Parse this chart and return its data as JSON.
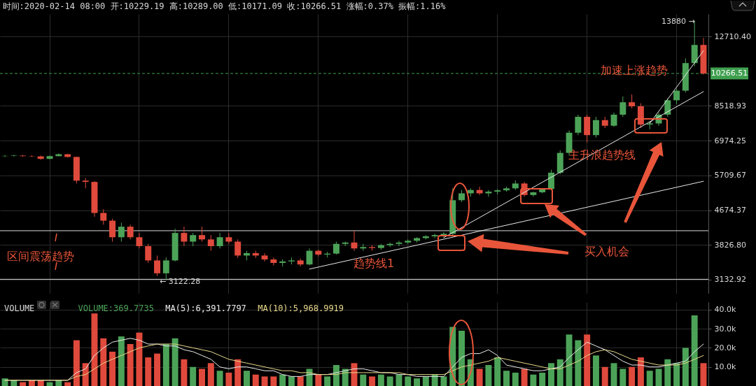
{
  "chart_data": [
    {
      "type": "candlestick",
      "title": "时间:2020-02-14 08:00  开:10229.19  高:10289.00  低:10171.09  收:10266.51  涨幅:0.37%  振幅:1.16%",
      "categories": [
        null,
        null,
        null,
        null,
        null,
        null,
        null,
        null,
        null,
        null,
        null,
        null,
        null,
        null,
        null,
        null,
        null,
        null,
        null,
        null,
        null,
        null,
        null,
        null,
        null,
        null,
        null,
        null,
        null,
        null,
        null,
        null,
        null,
        null,
        null,
        null,
        null,
        null,
        null,
        null,
        null,
        null,
        null,
        null,
        null,
        null,
        null,
        null,
        null,
        null,
        null,
        null,
        null,
        null,
        null,
        null,
        null,
        null,
        null,
        null,
        null,
        null,
        null,
        null,
        null,
        null,
        null,
        null,
        null,
        null,
        null,
        null,
        null,
        null,
        null,
        null,
        null,
        null,
        null
      ],
      "ohlc": [
        [
          6380,
          6420,
          6350,
          6390
        ],
        [
          6390,
          6430,
          6360,
          6400
        ],
        [
          6400,
          6420,
          6360,
          6380
        ],
        [
          6380,
          6410,
          6350,
          6370
        ],
        [
          6370,
          6400,
          6250,
          6280
        ],
        [
          6280,
          6400,
          6270,
          6380
        ],
        [
          6380,
          6480,
          6370,
          6450
        ],
        [
          6450,
          6460,
          6330,
          6350
        ],
        [
          6350,
          6360,
          5450,
          5540
        ],
        [
          5540,
          5620,
          5300,
          5500
        ],
        [
          5500,
          5520,
          4500,
          4600
        ],
        [
          4600,
          4700,
          4300,
          4400
        ],
        [
          4400,
          4450,
          3900,
          4000
        ],
        [
          4000,
          4350,
          3900,
          4250
        ],
        [
          4250,
          4300,
          3950,
          4000
        ],
        [
          4000,
          4100,
          3750,
          3800
        ],
        [
          3800,
          3850,
          3450,
          3500
        ],
        [
          3500,
          3600,
          3200,
          3250
        ],
        [
          3250,
          3560,
          3122.28,
          3500
        ],
        [
          3500,
          4200,
          3480,
          4100
        ],
        [
          4100,
          4250,
          3800,
          3900
        ],
        [
          3900,
          4100,
          3800,
          4050
        ],
        [
          4050,
          4250,
          3900,
          3950
        ],
        [
          3950,
          4050,
          3700,
          3800
        ],
        [
          3800,
          4100,
          3750,
          4000
        ],
        [
          4000,
          4100,
          3850,
          3900
        ],
        [
          3900,
          3950,
          3550,
          3600
        ],
        [
          3600,
          3700,
          3500,
          3650
        ],
        [
          3650,
          3700,
          3550,
          3600
        ],
        [
          3600,
          3650,
          3480,
          3520
        ],
        [
          3520,
          3560,
          3400,
          3450
        ],
        [
          3450,
          3520,
          3380,
          3480
        ],
        [
          3480,
          3560,
          3420,
          3500
        ],
        [
          3500,
          3540,
          3380,
          3420
        ],
        [
          3420,
          3750,
          3400,
          3700
        ],
        [
          3700,
          3720,
          3580,
          3620
        ],
        [
          3620,
          3680,
          3560,
          3640
        ],
        [
          3640,
          3900,
          3620,
          3850
        ],
        [
          3850,
          3900,
          3800,
          3880
        ],
        [
          3880,
          4150,
          3700,
          3750
        ],
        [
          3750,
          3850,
          3700,
          3780
        ],
        [
          3780,
          3820,
          3700,
          3760
        ],
        [
          3760,
          3850,
          3720,
          3820
        ],
        [
          3820,
          3880,
          3780,
          3850
        ],
        [
          3850,
          3920,
          3800,
          3880
        ],
        [
          3880,
          3950,
          3850,
          3920
        ],
        [
          3920,
          4000,
          3880,
          3980
        ],
        [
          3980,
          4050,
          3950,
          4020
        ],
        [
          4020,
          4080,
          3980,
          4050
        ],
        [
          4050,
          4120,
          4000,
          4080
        ],
        [
          4080,
          5300,
          4050,
          4950
        ],
        [
          4950,
          5250,
          4900,
          5150
        ],
        [
          5150,
          5300,
          5050,
          5250
        ],
        [
          5250,
          5350,
          5100,
          5150
        ],
        [
          5150,
          5250,
          5050,
          5200
        ],
        [
          5200,
          5280,
          5120,
          5240
        ],
        [
          5240,
          5350,
          5200,
          5300
        ],
        [
          5300,
          5550,
          5250,
          5450
        ],
        [
          5450,
          5500,
          5050,
          5100
        ],
        [
          5100,
          5200,
          5050,
          5180
        ],
        [
          5180,
          5300,
          5150,
          5280
        ],
        [
          5280,
          5900,
          5250,
          5800
        ],
        [
          5800,
          6600,
          5750,
          6500
        ],
        [
          6500,
          7400,
          6400,
          7300
        ],
        [
          7300,
          8100,
          7200,
          8000
        ],
        [
          8000,
          8100,
          6900,
          7200
        ],
        [
          7200,
          8000,
          7100,
          7850
        ],
        [
          7850,
          8000,
          7500,
          7600
        ],
        [
          7600,
          8200,
          7550,
          8100
        ],
        [
          8100,
          9000,
          8000,
          8700
        ],
        [
          8700,
          9100,
          8400,
          8500
        ],
        [
          8500,
          8650,
          7500,
          7650
        ],
        [
          7650,
          7800,
          7450,
          7700
        ],
        [
          7700,
          8200,
          7600,
          8100
        ],
        [
          8100,
          8900,
          8000,
          8800
        ],
        [
          8800,
          9400,
          8600,
          9300
        ],
        [
          9300,
          11200,
          9200,
          10900
        ],
        [
          10900,
          13880,
          10700,
          12100
        ],
        [
          12100,
          12600,
          10200,
          10266.51
        ]
      ],
      "colors": [
        "#4ca358",
        "#4ca358",
        "#e04a3c",
        "#e04a3c",
        "#e04a3c",
        "#4ca358",
        "#4ca358",
        "#e04a3c",
        "#e04a3c",
        "#e04a3c",
        "#e04a3c",
        "#e04a3c",
        "#e04a3c",
        "#4ca358",
        "#e04a3c",
        "#e04a3c",
        "#e04a3c",
        "#e04a3c",
        "#4ca358",
        "#4ca358",
        "#e04a3c",
        "#4ca358",
        "#e04a3c",
        "#e04a3c",
        "#4ca358",
        "#e04a3c",
        "#e04a3c",
        "#4ca358",
        "#e04a3c",
        "#e04a3c",
        "#e04a3c",
        "#4ca358",
        "#4ca358",
        "#e04a3c",
        "#4ca358",
        "#e04a3c",
        "#4ca358",
        "#4ca358",
        "#4ca358",
        "#e04a3c",
        "#4ca358",
        "#e04a3c",
        "#4ca358",
        "#4ca358",
        "#4ca358",
        "#4ca358",
        "#4ca358",
        "#4ca358",
        "#4ca358",
        "#4ca358",
        "#4ca358",
        "#4ca358",
        "#4ca358",
        "#e04a3c",
        "#4ca358",
        "#4ca358",
        "#4ca358",
        "#4ca358",
        "#e04a3c",
        "#4ca358",
        "#4ca358",
        "#4ca358",
        "#4ca358",
        "#4ca358",
        "#4ca358",
        "#e04a3c",
        "#4ca358",
        "#e04a3c",
        "#4ca358",
        "#4ca358",
        "#e04a3c",
        "#e04a3c",
        "#4ca358",
        "#4ca358",
        "#4ca358",
        "#4ca358",
        "#4ca358",
        "#4ca358",
        "#e04a3c"
      ],
      "ylim": [
        2890,
        14460
      ],
      "log": true,
      "yticks": [
        3132.92,
        {
          "value": 3826.8,
          "label": "3826.80"
        },
        4674.37,
        5709.67,
        6974.25,
        8518.93,
        {
          "value": 12710.4,
          "label": "12710.40"
        }
      ],
      "grid": true,
      "tick_labels": "y",
      "ref_lines": [
        {
          "axis": "y",
          "value": 10266.51,
          "label": "10266.51",
          "color": "#3f9f4f",
          "line_style": "dashed"
        },
        {
          "axis": "y",
          "value": 4153,
          "color": "#d9d9d9",
          "line_style": "solid"
        },
        {
          "axis": "y",
          "value": 3140,
          "color": "#d9d9d9",
          "line_style": "solid"
        }
      ],
      "series": [
        {
          "type": "line",
          "color": "#e8e8e8",
          "values": [
            null,
            null,
            null,
            null,
            null,
            null,
            null,
            null,
            null,
            null,
            null,
            null,
            null,
            null,
            null,
            null,
            null,
            null,
            null,
            null,
            null,
            null,
            null,
            null,
            null,
            null,
            null,
            null,
            null,
            null,
            null,
            null,
            null,
            null,
            3330,
            null,
            null,
            null,
            null,
            null,
            null,
            null,
            null,
            null,
            null,
            null,
            null,
            null,
            null,
            null,
            null,
            null,
            null,
            null,
            null,
            null,
            null,
            null,
            null,
            null,
            null,
            null,
            null,
            null,
            null,
            null,
            null,
            null,
            null,
            null,
            null,
            null,
            null,
            null,
            null,
            null,
            null,
            null,
            5520
          ]
        },
        {
          "type": "line",
          "color": "#e8e8e8",
          "values": [
            null,
            null,
            null,
            null,
            null,
            null,
            null,
            null,
            null,
            null,
            null,
            null,
            null,
            null,
            null,
            null,
            null,
            null,
            null,
            null,
            null,
            null,
            null,
            null,
            null,
            null,
            null,
            null,
            null,
            null,
            null,
            null,
            null,
            null,
            null,
            null,
            null,
            null,
            null,
            null,
            null,
            null,
            null,
            null,
            null,
            null,
            null,
            null,
            null,
            3990,
            null,
            null,
            null,
            null,
            null,
            null,
            null,
            null,
            null,
            null,
            null,
            null,
            null,
            null,
            null,
            null,
            null,
            null,
            null,
            null,
            null,
            null,
            null,
            null,
            null,
            null,
            null,
            null,
            9250
          ]
        },
        {
          "type": "line",
          "color": "#e8e8e8",
          "values": [
            null,
            null,
            null,
            null,
            null,
            null,
            null,
            null,
            null,
            null,
            null,
            null,
            null,
            null,
            null,
            null,
            null,
            null,
            null,
            null,
            null,
            null,
            null,
            null,
            null,
            null,
            null,
            null,
            null,
            null,
            null,
            null,
            null,
            null,
            null,
            null,
            null,
            null,
            null,
            null,
            null,
            null,
            null,
            null,
            null,
            null,
            null,
            null,
            null,
            null,
            null,
            null,
            null,
            null,
            null,
            null,
            null,
            null,
            null,
            null,
            null,
            null,
            null,
            null,
            null,
            null,
            null,
            null,
            null,
            null,
            null,
            null,
            7700,
            null,
            null,
            null,
            null,
            null,
            11700
          ]
        }
      ],
      "annotations": [
        "区间震荡趋势",
        "趋势线1",
        "主升浪趋势线",
        "加速上涨趋势",
        "买入机会",
        "13880 →",
        "← 3122.28"
      ]
    },
    {
      "type": "bar",
      "title": "VOLUME",
      "categories": [
        null,
        null,
        null,
        null,
        null,
        null,
        null,
        null,
        null,
        null,
        null,
        null,
        null,
        null,
        null,
        null,
        null,
        null,
        null,
        null,
        null,
        null,
        null,
        null,
        null,
        null,
        null,
        null,
        null,
        null,
        null,
        null,
        null,
        null,
        null,
        null,
        null,
        null,
        null,
        null,
        null,
        null,
        null,
        null,
        null,
        null,
        null,
        null,
        null,
        null,
        null,
        null,
        null,
        null,
        null,
        null,
        null,
        null,
        null,
        null,
        null,
        null,
        null,
        null,
        null,
        null,
        null,
        null,
        null,
        null,
        null,
        null,
        null,
        null,
        null,
        null,
        null,
        null,
        null
      ],
      "ylim": [
        0,
        44000
      ],
      "yticks": [
        {
          "value": 10000,
          "label": "10.0k"
        },
        {
          "value": 20000,
          "label": "20.0k"
        },
        {
          "value": 30000,
          "label": "30.0k"
        },
        {
          "value": 40000,
          "label": "40.0k"
        }
      ],
      "grid": true,
      "tick_labels": "y",
      "legend": "top left",
      "series": [
        {
          "type": "bar",
          "name": "VOLUME:369.7735",
          "color": "#4ca358",
          "colors": [
            "#4ca358",
            "#4ca358",
            "#e04a3c",
            "#e04a3c",
            "#e04a3c",
            "#4ca358",
            "#4ca358",
            "#e04a3c",
            "#e04a3c",
            "#e04a3c",
            "#e04a3c",
            "#e04a3c",
            "#e04a3c",
            "#4ca358",
            "#e04a3c",
            "#e04a3c",
            "#e04a3c",
            "#e04a3c",
            "#4ca358",
            "#4ca358",
            "#e04a3c",
            "#4ca358",
            "#e04a3c",
            "#e04a3c",
            "#4ca358",
            "#e04a3c",
            "#e04a3c",
            "#4ca358",
            "#e04a3c",
            "#e04a3c",
            "#e04a3c",
            "#4ca358",
            "#4ca358",
            "#e04a3c",
            "#4ca358",
            "#e04a3c",
            "#4ca358",
            "#4ca358",
            "#4ca358",
            "#e04a3c",
            "#4ca358",
            "#e04a3c",
            "#4ca358",
            "#4ca358",
            "#4ca358",
            "#4ca358",
            "#4ca358",
            "#4ca358",
            "#4ca358",
            "#4ca358",
            "#4ca358",
            "#4ca358",
            "#4ca358",
            "#e04a3c",
            "#4ca358",
            "#4ca358",
            "#4ca358",
            "#4ca358",
            "#e04a3c",
            "#4ca358",
            "#4ca358",
            "#4ca358",
            "#4ca358",
            "#4ca358",
            "#4ca358",
            "#e04a3c",
            "#4ca358",
            "#e04a3c",
            "#4ca358",
            "#4ca358",
            "#e04a3c",
            "#e04a3c",
            "#4ca358",
            "#4ca358",
            "#4ca358",
            "#4ca358",
            "#4ca358",
            "#4ca358",
            "#e04a3c"
          ],
          "values": [
            4000,
            3000,
            2000,
            3000,
            3000,
            2000,
            3000,
            2000,
            24000,
            12000,
            38000,
            25000,
            18000,
            26000,
            22000,
            28000,
            15000,
            17000,
            22000,
            25000,
            14000,
            10000,
            9000,
            12000,
            8000,
            7000,
            14000,
            8000,
            6000,
            5000,
            5000,
            6000,
            5000,
            5000,
            9000,
            6000,
            5000,
            11000,
            9000,
            12000,
            6000,
            5000,
            6000,
            5000,
            6000,
            5000,
            4000,
            5000,
            6000,
            5000,
            31000,
            29000,
            14000,
            9000,
            11000,
            15000,
            8000,
            7000,
            9000,
            6000,
            7000,
            12000,
            14000,
            27000,
            24000,
            27000,
            16000,
            10000,
            12000,
            9000,
            10000,
            15000,
            8000,
            9000,
            14000,
            12000,
            20000,
            37000,
            12000
          ]
        },
        {
          "type": "line",
          "name": "MA(5):6,391.7797",
          "color": "#ececec",
          "values": [
            3000,
            3000,
            3000,
            3000,
            3000,
            3000,
            3000,
            3000,
            7000,
            9000,
            16000,
            20000,
            23000,
            24000,
            25000,
            24000,
            22000,
            22000,
            21000,
            21000,
            19000,
            18000,
            16000,
            14000,
            10000,
            9000,
            10000,
            10000,
            9000,
            8000,
            8000,
            6000,
            5000,
            5000,
            6000,
            6000,
            6000,
            7000,
            8000,
            9000,
            9000,
            8000,
            7000,
            7000,
            6000,
            6000,
            5000,
            5000,
            5000,
            5000,
            10000,
            15000,
            17000,
            17000,
            19000,
            16000,
            11000,
            10000,
            9000,
            8000,
            8000,
            9000,
            10000,
            15000,
            19000,
            23000,
            21000,
            19000,
            16000,
            13000,
            11000,
            11000,
            10000,
            10000,
            11000,
            12000,
            13000,
            18000,
            22000
          ]
        },
        {
          "type": "line",
          "name": "MA(10):5,968.9919",
          "color": "#e8d88a",
          "values": [
            3000,
            3000,
            3000,
            3000,
            3000,
            3000,
            3000,
            3000,
            5000,
            6000,
            9000,
            12000,
            14000,
            16000,
            18000,
            20000,
            21000,
            22000,
            22000,
            22000,
            21000,
            20000,
            19000,
            18000,
            16000,
            14000,
            13000,
            12000,
            11000,
            10000,
            9000,
            8000,
            8000,
            7000,
            7000,
            6000,
            6000,
            6000,
            7000,
            7000,
            7000,
            7000,
            7000,
            7000,
            7000,
            6000,
            6000,
            6000,
            6000,
            6000,
            8000,
            10000,
            11000,
            12000,
            13000,
            15000,
            14000,
            13000,
            12000,
            11000,
            10000,
            9000,
            9000,
            11000,
            13000,
            16000,
            18000,
            19000,
            18000,
            16000,
            14000,
            13000,
            12000,
            11000,
            11000,
            11000,
            12000,
            14000,
            16000
          ]
        }
      ]
    }
  ]
}
